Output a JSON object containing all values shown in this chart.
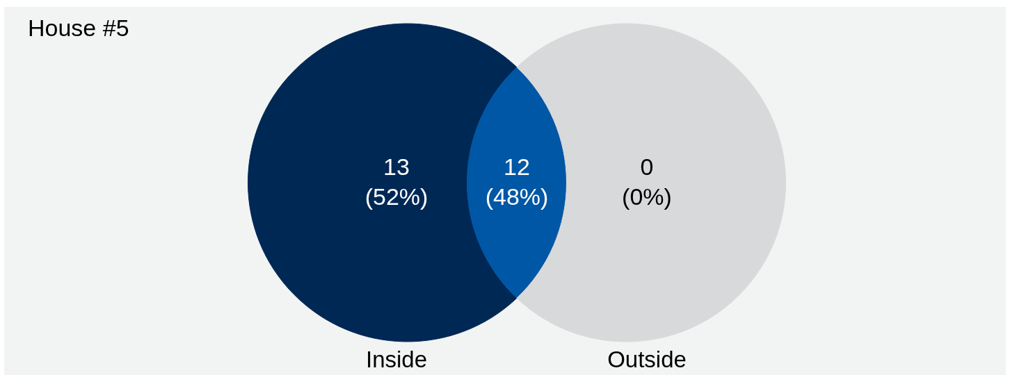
{
  "chart_data": {
    "type": "other",
    "title": "House #5",
    "categories": [
      "Inside",
      null,
      "Outside"
    ],
    "values": [
      13,
      12,
      0
    ],
    "data_labels": true,
    "annotations": [
      "(52%)",
      "(48%)",
      "(0%)"
    ],
    "colors": [
      "#002855",
      "#0057a5",
      "#d8d9db"
    ]
  }
}
